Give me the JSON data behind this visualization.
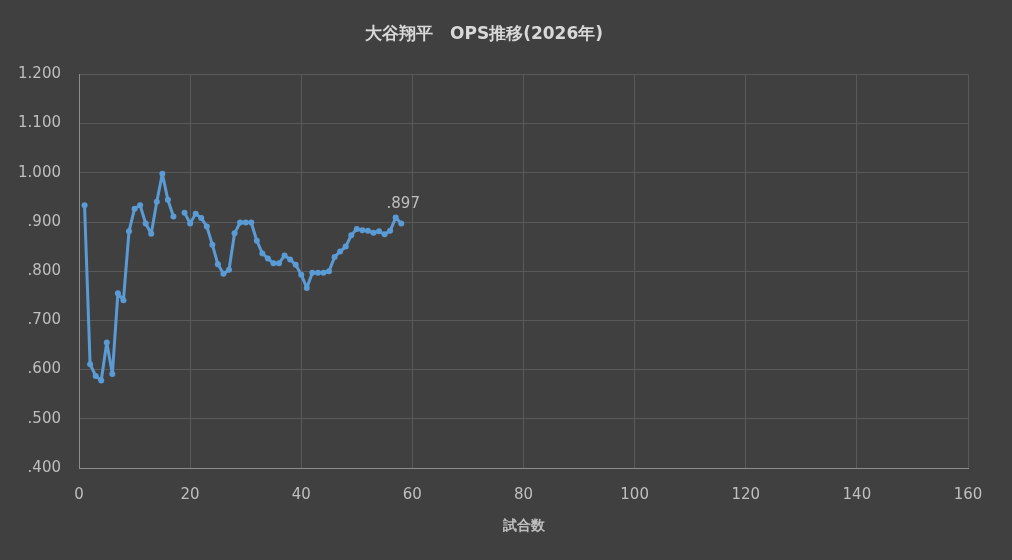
{
  "chart_data": {
    "type": "line",
    "title": "大谷翔平　OPS推移(2026年)",
    "xlabel": "試合数",
    "x": [
      1,
      2,
      3,
      4,
      5,
      6,
      7,
      8,
      9,
      10,
      11,
      12,
      13,
      14,
      15,
      16,
      17,
      18,
      19,
      20,
      21,
      22,
      23,
      24,
      25,
      26,
      27,
      28,
      29,
      30,
      31,
      32,
      33,
      34,
      35,
      36,
      37,
      38,
      39,
      40,
      41,
      42,
      43,
      44,
      45,
      46,
      47,
      48,
      49,
      50,
      51,
      52,
      53,
      54,
      55,
      56,
      57,
      58
    ],
    "series": [
      {
        "color": "#5b9bd5",
        "values": [
          0.934,
          0.611,
          0.587,
          0.578,
          0.655,
          0.591,
          0.755,
          0.741,
          0.881,
          0.927,
          0.934,
          0.897,
          0.876,
          0.941,
          0.998,
          0.945,
          0.911,
          null,
          0.919,
          0.897,
          0.917,
          0.908,
          0.891,
          0.854,
          0.814,
          0.795,
          0.803,
          0.877,
          0.899,
          0.899,
          0.899,
          0.862,
          0.836,
          0.826,
          0.816,
          0.816,
          0.832,
          0.824,
          0.813,
          0.793,
          0.766,
          0.797,
          0.797,
          0.797,
          0.8,
          0.829,
          0.84,
          0.85,
          0.873,
          0.886,
          0.883,
          0.882,
          0.878,
          0.881,
          0.875,
          0.882,
          0.909,
          0.897
        ],
        "value_labels": [
          null,
          null,
          null,
          null,
          null,
          null,
          null,
          null,
          null,
          null,
          null,
          null,
          null,
          null,
          null,
          null,
          null,
          null,
          null,
          null,
          null,
          null,
          null,
          null,
          null,
          null,
          null,
          null,
          null,
          null,
          null,
          null,
          null,
          null,
          null,
          null,
          null,
          null,
          null,
          null,
          null,
          null,
          null,
          null,
          null,
          null,
          null,
          null,
          null,
          null,
          null,
          null,
          null,
          null,
          null,
          null,
          null,
          ".897"
        ]
      }
    ],
    "xlim": [
      0,
      160
    ],
    "xticks": [
      0,
      20,
      40,
      60,
      80,
      100,
      120,
      140,
      160
    ],
    "ylim": [
      0.4,
      1.2
    ],
    "yticks": [
      {
        "value": 0.4,
        "label": ".400"
      },
      {
        "value": 0.5,
        "label": ".500"
      },
      {
        "value": 0.6,
        "label": ".600"
      },
      {
        "value": 0.7,
        "label": ".700"
      },
      {
        "value": 0.8,
        "label": ".800"
      },
      {
        "value": 0.9,
        "label": ".900"
      },
      {
        "value": 1.0,
        "label": "1.000"
      },
      {
        "value": 1.1,
        "label": "1.100"
      },
      {
        "value": 1.2,
        "label": "1.200"
      }
    ],
    "grid": true,
    "marker": "circle"
  }
}
